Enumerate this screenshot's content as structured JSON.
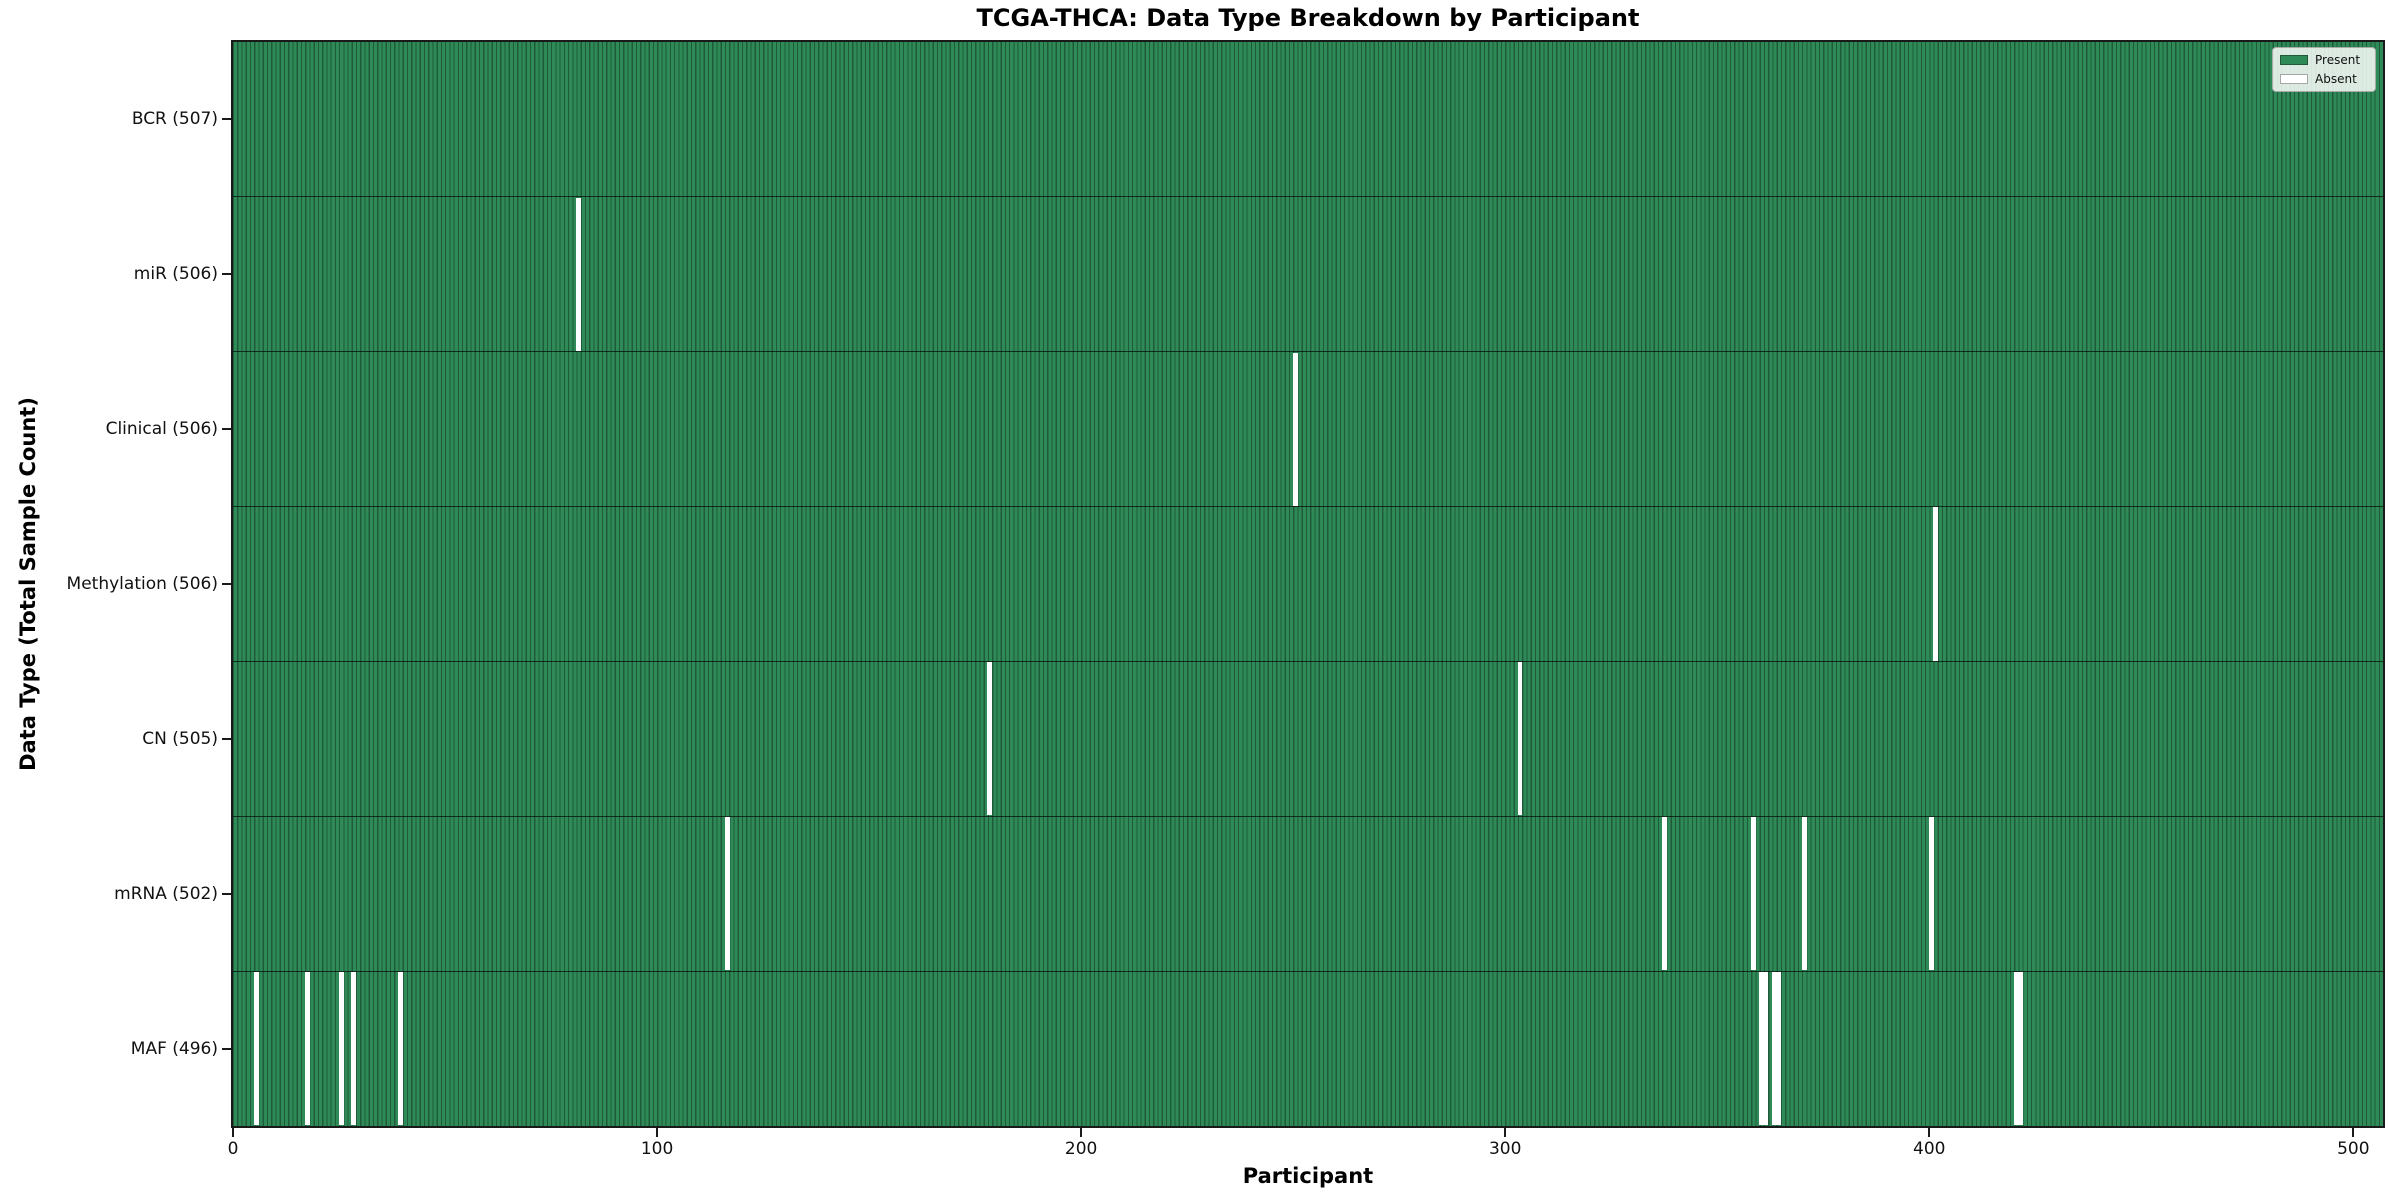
{
  "figure": {
    "title": "TCGA-THCA: Data Type Breakdown by Participant",
    "xlabel": "Participant",
    "ylabel": "Data Type (Total Sample Count)"
  },
  "legend": {
    "position": "upper right",
    "entries": [
      {
        "label": "Present",
        "color": "#2e8b57"
      },
      {
        "label": "Absent",
        "color": "#ffffff"
      }
    ]
  },
  "chart_data": {
    "type": "heatmap",
    "title": "TCGA-THCA: Data Type Breakdown by Participant",
    "xlabel": "Participant",
    "ylabel": "Data Type (Total Sample Count)",
    "n_participants": 507,
    "xlim": [
      0,
      507
    ],
    "x_ticks": [
      0,
      100,
      200,
      300,
      400,
      500
    ],
    "grid": false,
    "colors": {
      "present_fill": "#2e8b57",
      "cell_edge": "#1f5b3b",
      "absent_fill": "#ffffff",
      "row_separator": "#000000"
    },
    "rows": [
      {
        "label": "BCR (507)",
        "data_type": "BCR",
        "total_samples": 507,
        "absent_participants": []
      },
      {
        "label": "miR (506)",
        "data_type": "miR",
        "total_samples": 506,
        "absent_participants": [
          81
        ]
      },
      {
        "label": "Clinical (506)",
        "data_type": "Clinical",
        "total_samples": 506,
        "absent_participants": [
          250
        ]
      },
      {
        "label": "Methylation (506)",
        "data_type": "Methylation",
        "total_samples": 506,
        "absent_participants": [
          401
        ]
      },
      {
        "label": "CN (505)",
        "data_type": "CN",
        "total_samples": 505,
        "absent_participants": [
          178,
          303
        ]
      },
      {
        "label": "mRNA (502)",
        "data_type": "mRNA",
        "total_samples": 502,
        "absent_participants": [
          116,
          337,
          358,
          370,
          400
        ]
      },
      {
        "label": "MAF (496)",
        "data_type": "MAF",
        "total_samples": 496,
        "absent_participants": [
          5,
          17,
          25,
          28,
          39,
          360,
          361,
          363,
          364,
          420,
          421
        ]
      }
    ]
  }
}
